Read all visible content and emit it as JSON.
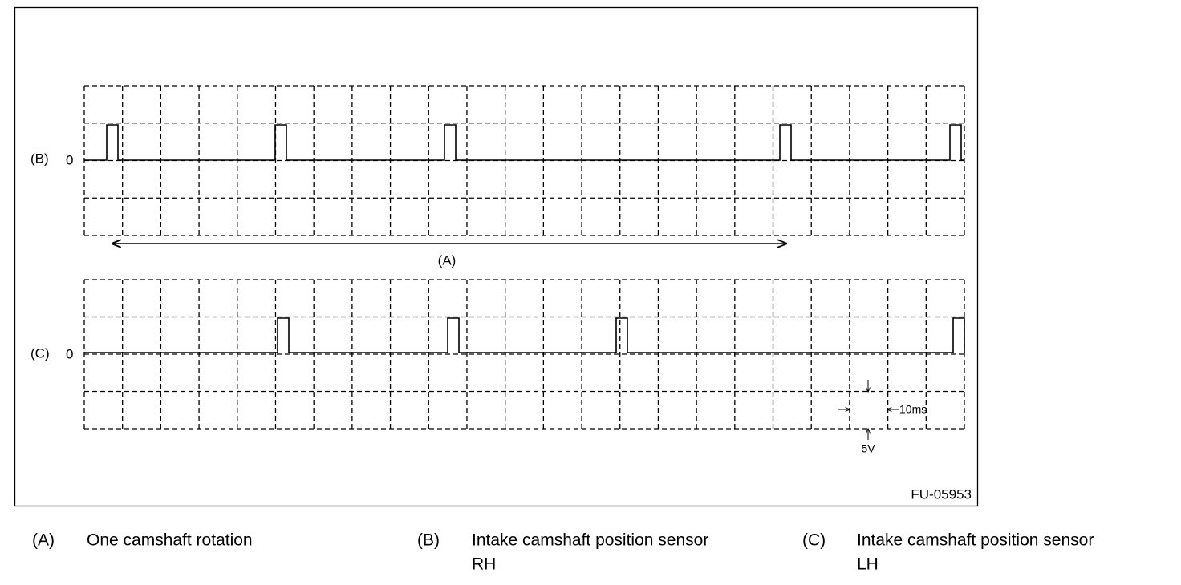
{
  "figure": {
    "label_b": "(B)",
    "zero_b": "0",
    "label_c": "(C)",
    "zero_c": "0",
    "span_label": "(A)",
    "time_scale": "10ms",
    "volt_scale": "5V",
    "figure_id": "FU-05953"
  },
  "legend": [
    {
      "key": "(A)",
      "lines": [
        "One camshaft rotation"
      ]
    },
    {
      "key": "(B)",
      "lines": [
        "Intake camshaft position sensor",
        "RH"
      ]
    },
    {
      "key": "(C)",
      "lines": [
        "Intake camshaft position sensor",
        "LH"
      ]
    }
  ]
}
